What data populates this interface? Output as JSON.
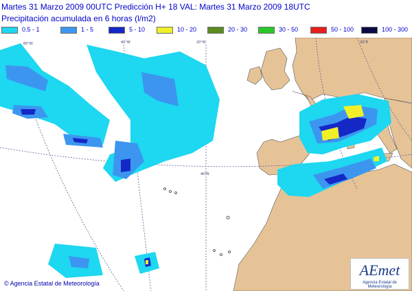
{
  "header": {
    "line1": "Martes 31 Marzo 2009 00UTC    Predicción H+ 18  VAL: Martes 31 Marzo 2009 18UTC",
    "line2": "Precipitación acumulada en 6 horas (l/m2)"
  },
  "legend": [
    {
      "label": "0.5 - 1",
      "color": "#1ed7f0"
    },
    {
      "label": "1 - 5",
      "color": "#3c96f0"
    },
    {
      "label": "5 - 10",
      "color": "#1428c8"
    },
    {
      "label": "10 - 20",
      "color": "#f0f028"
    },
    {
      "label": "20 - 30",
      "color": "#5a8c1e"
    },
    {
      "label": "30 - 50",
      "color": "#28c828"
    },
    {
      "label": "50 - 100",
      "color": "#e61e1e"
    },
    {
      "label": "100 - 300",
      "color": "#0a0a46"
    }
  ],
  "map": {
    "sea_color": "#ffffff",
    "land_color": "#e6c396",
    "graticule_labels": [
      "60°W",
      "40°W",
      "20°W",
      "20°E",
      "40°N"
    ]
  },
  "footer": {
    "credit": "© Agencia Estatal de Meteorología",
    "logo_text": "AEmet",
    "logo_subtext": "Agencia Estatal de Meteorología"
  }
}
